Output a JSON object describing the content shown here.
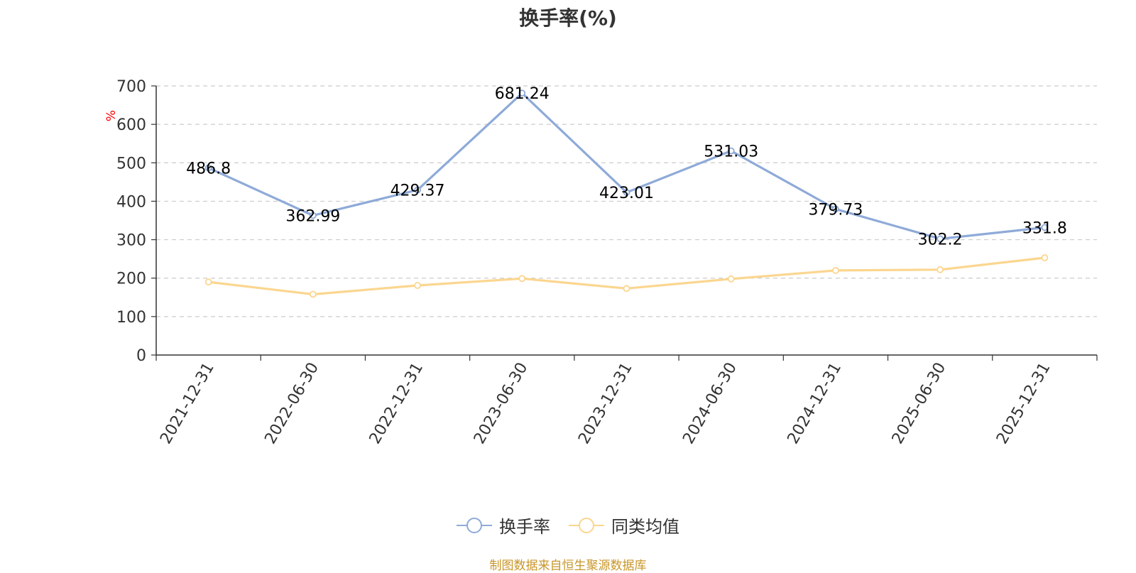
{
  "chart_data": {
    "type": "line",
    "title": "换手率(%)",
    "ylabel": "%",
    "xlabel": "",
    "ylim": [
      0,
      700
    ],
    "yticks": [
      "0",
      "100",
      "200",
      "300",
      "400",
      "500",
      "600",
      "700"
    ],
    "categories": [
      "2021-12-31",
      "2022-06-30",
      "2022-12-31",
      "2023-06-30",
      "2023-12-31",
      "2024-06-30",
      "2024-12-31",
      "2025-06-30",
      "2025-12-31"
    ],
    "series": [
      {
        "name": "换手率",
        "color": "#8eaad8",
        "values": [
          486.8,
          362.99,
          429.37,
          681.24,
          423.01,
          531.03,
          379.73,
          302.2,
          331.8
        ],
        "labels": [
          "486.8",
          "362.99",
          "429.37",
          "681.24",
          "423.01",
          "531.03",
          "379.73",
          "302.2",
          "331.8"
        ]
      },
      {
        "name": "同类均值",
        "color": "#fbd68f",
        "values": [
          190,
          158,
          181,
          199,
          173,
          198,
          220,
          222,
          253
        ]
      }
    ],
    "grid": true,
    "legend": "bottom-center"
  },
  "footer": {
    "source": "制图数据来自恒生聚源数据库"
  }
}
